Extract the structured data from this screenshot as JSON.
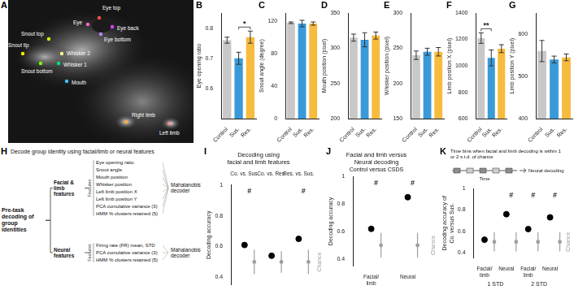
{
  "image_panel": {
    "panel": "A",
    "labels": [
      {
        "text": "Eye top",
        "color": "#ff4d4d"
      },
      {
        "text": "Eye",
        "color": "#ff66cc"
      },
      {
        "text": "Eye back",
        "color": "#e040fb"
      },
      {
        "text": "Eye bottom",
        "color": "#b388ff"
      },
      {
        "text": "Snout top",
        "color": "#c6ff00"
      },
      {
        "text": "Snout tip",
        "color": "#ffea00"
      },
      {
        "text": "Snout bottom",
        "color": "#76ff03"
      },
      {
        "text": "Whisker 2",
        "color": "#ffff8d"
      },
      {
        "text": "Whisker 1",
        "color": "#00e676"
      },
      {
        "text": "Mouth",
        "color": "#40c4ff"
      },
      {
        "text": "Right limb",
        "color": "#ffab40"
      },
      {
        "text": "Left limb",
        "color": "#ff8a80"
      }
    ]
  },
  "chart_data": [
    {
      "panel": "B",
      "type": "bar",
      "y_label": "Eye opening ratio",
      "categories": [
        "Control",
        "Sus.",
        "Res."
      ],
      "values": [
        0.76,
        0.7,
        0.77
      ],
      "errors": [
        0.01,
        0.02,
        0.02
      ],
      "colors": [
        "#c8c8c8",
        "#3a9ad9",
        "#f7bb3d"
      ],
      "ylim": [
        0.5,
        0.85
      ],
      "yticks": [
        0.6,
        0.7,
        0.8
      ],
      "grid": false,
      "significance": [
        {
          "text": "*",
          "from": "Sus.",
          "to": "Res."
        }
      ]
    },
    {
      "panel": "C",
      "type": "bar",
      "y_label": "Snout angle (degree)",
      "categories": [
        "Control",
        "Sus.",
        "Res."
      ],
      "values": [
        118,
        117,
        117
      ],
      "errors": [
        1,
        4,
        2
      ],
      "colors": [
        "#c8c8c8",
        "#3a9ad9",
        "#f7bb3d"
      ],
      "ylim": [
        0,
        130
      ],
      "yticks": [
        0,
        40,
        80,
        120
      ],
      "grid": false
    },
    {
      "panel": "D",
      "type": "bar",
      "y_label": "Mouth position (pixel)",
      "categories": [
        "Control",
        "Sus.",
        "Res."
      ],
      "values": [
        315,
        312,
        318
      ],
      "errors": [
        5,
        10,
        5
      ],
      "colors": [
        "#c8c8c8",
        "#3a9ad9",
        "#f7bb3d"
      ],
      "ylim": [
        200,
        350
      ],
      "yticks": [
        200,
        250,
        300,
        350
      ],
      "grid": false
    },
    {
      "panel": "E",
      "type": "bar",
      "y_label": "Whisker position (pixel)",
      "categories": [
        "Control",
        "Sus.",
        "Res."
      ],
      "values": [
        240,
        245,
        245
      ],
      "errors": [
        6,
        5,
        6
      ],
      "colors": [
        "#c8c8c8",
        "#3a9ad9",
        "#f7bb3d"
      ],
      "ylim": [
        150,
        300
      ],
      "yticks": [
        150,
        200,
        250,
        300
      ],
      "grid": false
    },
    {
      "panel": "F",
      "type": "bar",
      "y_label": "Limb position X (pixel)",
      "categories": [
        "Control",
        "Sus.",
        "Res."
      ],
      "values": [
        1210,
        1060,
        1130
      ],
      "errors": [
        40,
        60,
        30
      ],
      "colors": [
        "#c8c8c8",
        "#3a9ad9",
        "#f7bb3d"
      ],
      "ylim": [
        600,
        1400
      ],
      "yticks": [
        600,
        800,
        1000,
        1200,
        1400
      ],
      "grid": false,
      "significance": [
        {
          "text": "**",
          "from": "Control",
          "to": "Sus."
        }
      ]
    },
    {
      "panel": "G",
      "type": "bar",
      "y_label": "Limb position Y (pixel)",
      "categories": [
        "Control",
        "Sus.",
        "Res."
      ],
      "values": [
        560,
        540,
        545
      ],
      "errors": [
        25,
        8,
        8
      ],
      "colors": [
        "#c8c8c8",
        "#3a9ad9",
        "#f7bb3d"
      ],
      "ylim": [
        400,
        650
      ],
      "yticks": [
        400,
        500,
        600
      ],
      "grid": false
    },
    {
      "panel": "I",
      "type": "dot",
      "title": [
        "Decoding using",
        "facial and limb features"
      ],
      "y_label": "Decoding accuracy",
      "categories": [
        "Co. vs. Sus.",
        "Co. vs. Res.",
        "Res. vs. Sus."
      ],
      "values": [
        0.61,
        0.54,
        0.65
      ],
      "color": "#000000",
      "chance": {
        "name": "Chance",
        "values": [
          0.5,
          0.5,
          0.5
        ],
        "low": [
          0.42,
          0.43,
          0.42
        ],
        "high": [
          0.58,
          0.57,
          0.58
        ],
        "color": "#9e9e9e"
      },
      "significance": [
        "#",
        null,
        "#"
      ],
      "ylim": [
        0.35,
        1
      ],
      "yticks": [
        0.4,
        0.6,
        0.8,
        1
      ],
      "grid": false
    },
    {
      "panel": "J",
      "type": "dot",
      "title": [
        "Facial and limb versus",
        "Neural decoding"
      ],
      "subtitle": "Control versus CSDS",
      "y_label": "Decoding accuracy",
      "categories": [
        "Facial/limb",
        "Neural"
      ],
      "values": [
        0.62,
        0.85
      ],
      "color": "#000000",
      "chance": {
        "name": "Chance",
        "values": [
          0.5,
          0.5
        ],
        "low": [
          0.41,
          0.41
        ],
        "high": [
          0.59,
          0.59
        ],
        "color": "#9e9e9e"
      },
      "significance": [
        "#",
        "#"
      ],
      "ylim": [
        0.35,
        1
      ],
      "yticks": [
        0.4,
        0.6,
        0.8,
        1
      ],
      "grid": false
    },
    {
      "panel": "K",
      "type": "dot",
      "inset": {
        "text": "Time bins when facial and limb decoding is within 1 or 2 s.t.d. of chance",
        "axis": "Time",
        "target": "Neural decoding"
      },
      "y_label": [
        "Decoding accuracy of",
        "Co. versus Sus."
      ],
      "categories": [
        "Facial/limb",
        "Neural",
        "Facial/limb",
        "Neural"
      ],
      "group_labels": [
        "1 STD",
        "2 STD"
      ],
      "values": [
        0.52,
        0.76,
        0.62,
        0.73
      ],
      "color": "#000000",
      "chance": {
        "name": "Chance",
        "values": [
          0.5,
          0.5,
          0.5,
          0.5
        ],
        "low": [
          0.41,
          0.41,
          0.41,
          0.41
        ],
        "high": [
          0.59,
          0.59,
          0.59,
          0.59
        ],
        "color": "#9e9e9e"
      },
      "significance": [
        null,
        "#",
        "#",
        "#"
      ],
      "ylim": [
        0.35,
        1
      ],
      "yticks": [
        0.4,
        0.6,
        0.8,
        1
      ],
      "grid": false
    }
  ],
  "diagram": {
    "panel": "H",
    "title": "Decode group identity using facial/limb or neural features",
    "root": "Pre-task decoding of group identities",
    "branches": [
      {
        "name": "Facial & limb features",
        "features_label": "Features",
        "features": [
          "Eye opening ratio",
          "Snout angle",
          "Mouth position",
          "Whisker position",
          "Left limb position X",
          "Left limb position Y",
          "PCA cumulative variance (3)",
          "HMM % clusters retained (5)"
        ],
        "decoder": "Mahalanobis decoder"
      },
      {
        "name": "Neural features",
        "features_label": "Features",
        "features": [
          "Firing rate (FR) mean, STD",
          "PCA cumulative variance (3)",
          "HMM % clusters retained (5)"
        ],
        "decoder": "Mahalanobis decoder"
      }
    ]
  }
}
